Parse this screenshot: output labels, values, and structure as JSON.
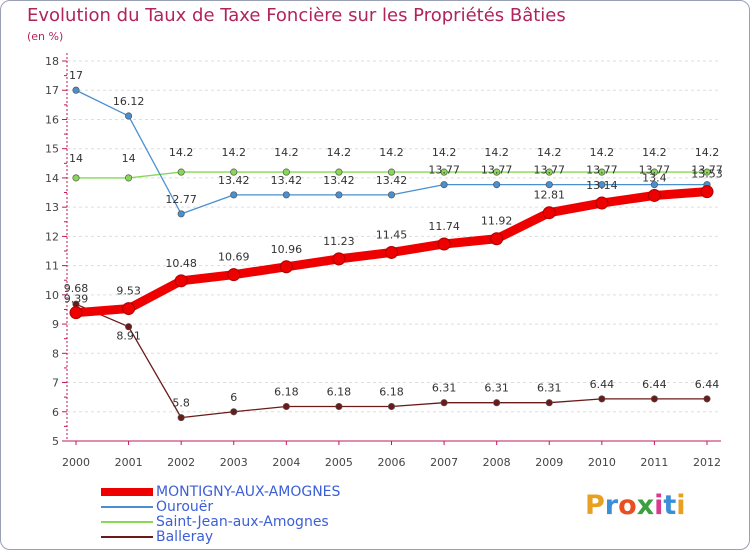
{
  "title": "Evolution du Taux de Taxe Foncière sur les Propriétés Bâties",
  "unit_label": "(en %)",
  "brand": {
    "text": "Proxiti"
  },
  "colors": {
    "title": "#b0245c",
    "legend_text": "#3c5fd8",
    "axis": "#c2185b",
    "grid": "#dddddd"
  },
  "chart_data": {
    "type": "line",
    "title": "Evolution du Taux de Taxe Foncière sur les Propriétés Bâties",
    "ylabel": "(en %)",
    "xlabel": "",
    "ylim": [
      5,
      18
    ],
    "yticks": [
      5,
      6,
      7,
      8,
      9,
      10,
      11,
      12,
      13,
      14,
      15,
      16,
      17,
      18
    ],
    "grid": "horizontal dashed",
    "legend_position": "bottom-left",
    "x": [
      "2000",
      "2001",
      "2002",
      "2003",
      "2004",
      "2005",
      "2006",
      "2007",
      "2008",
      "2009",
      "2010",
      "2011",
      "2012"
    ],
    "series": [
      {
        "name": "MONTIGNY-AUX-AMOGNES",
        "color": "#ee0000",
        "values": [
          9.39,
          9.53,
          10.48,
          10.69,
          10.96,
          11.23,
          11.45,
          11.74,
          11.92,
          12.81,
          13.14,
          13.4,
          13.53
        ],
        "labels": [
          "9.39",
          "9.53",
          "10.48",
          "10.69",
          "10.96",
          "11.23",
          "11.45",
          "11.74",
          "11.92",
          "12.81",
          "13.14",
          "13.4",
          "13.53"
        ]
      },
      {
        "name": "Ourouër",
        "color": "#4a8fd0",
        "values": [
          17,
          16.12,
          12.77,
          13.42,
          13.42,
          13.42,
          13.42,
          13.77,
          13.77,
          13.77,
          13.77,
          13.77,
          13.77
        ],
        "labels": [
          "17",
          "16.12",
          "12.77",
          "13.42",
          "13.42",
          "13.42",
          "13.42",
          "13.77",
          "13.77",
          "13.77",
          "13.77",
          "13.77",
          "13.77"
        ]
      },
      {
        "name": "Saint-Jean-aux-Amognes",
        "color": "#88d855",
        "values": [
          14,
          14,
          14.2,
          14.2,
          14.2,
          14.2,
          14.2,
          14.2,
          14.2,
          14.2,
          14.2,
          14.2,
          14.2
        ],
        "labels": [
          "14",
          "14",
          "14.2",
          "14.2",
          "14.2",
          "14.2",
          "14.2",
          "14.2",
          "14.2",
          "14.2",
          "14.2",
          "14.2",
          "14.2"
        ]
      },
      {
        "name": "Balleray",
        "color": "#6b1a1a",
        "values": [
          9.68,
          8.91,
          5.8,
          6,
          6.18,
          6.18,
          6.18,
          6.31,
          6.31,
          6.31,
          6.44,
          6.44,
          6.44
        ],
        "labels": [
          "9.68",
          "8.91",
          "5.8",
          "6",
          "6.18",
          "6.18",
          "6.18",
          "6.31",
          "6.31",
          "6.31",
          "6.44",
          "6.44",
          "6.44"
        ]
      }
    ]
  }
}
